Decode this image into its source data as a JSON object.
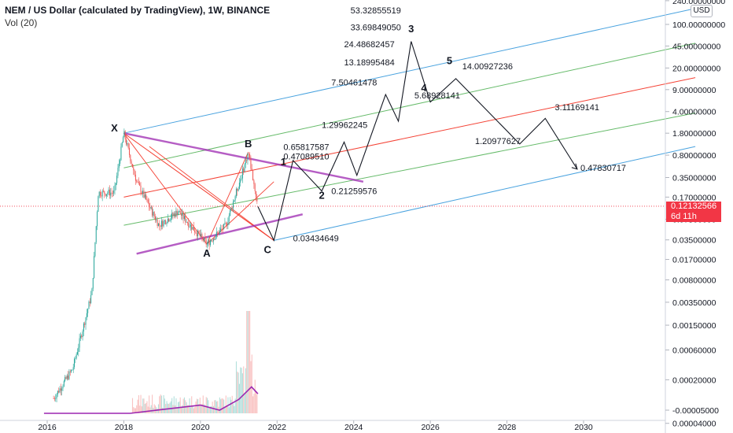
{
  "header": {
    "title": "NEM / US Dollar (calculated by TradingView), 1W, BINANCE",
    "indicator": "Vol (20)",
    "currency": "USD"
  },
  "price_badge": {
    "price": "0.12132566",
    "countdown": "6d 11h"
  },
  "colors": {
    "up": "#26a69a",
    "down": "#ef5350",
    "purple": "#9c27b0",
    "blue": "#4aa3df",
    "green": "#66bb6a",
    "red": "#f44336",
    "price_line": "#f23645"
  },
  "chart_data": {
    "type": "line",
    "title": "NEM / US Dollar (calculated by TradingView), 1W, BINANCE",
    "xlabel": "",
    "ylabel": "",
    "y_scale": "log",
    "x_ticks": [
      "2016",
      "2018",
      "2020",
      "2022",
      "2024",
      "2026",
      "2028",
      "2030"
    ],
    "y_ticks": [
      "240.00000000",
      "100.00000000",
      "45.00000000",
      "20.00000000",
      "9.00000000",
      "4.00000000",
      "1.80000000",
      "0.80000000",
      "0.35000000",
      "0.17000000",
      "0.07500000",
      "0.03500000",
      "0.01700000",
      "0.00800000",
      "0.00350000",
      "0.00150000",
      "0.00060000",
      "0.00020000",
      "0.00004000",
      "-0.00005000"
    ],
    "current_price": 0.12132566,
    "price_path": [
      {
        "date": "2016-03",
        "close": 0.0001
      },
      {
        "date": "2016-09",
        "close": 0.0003
      },
      {
        "date": "2017-03",
        "close": 0.005
      },
      {
        "date": "2017-05",
        "close": 0.2
      },
      {
        "date": "2017-10",
        "close": 0.2
      },
      {
        "date": "2018-01",
        "close": 1.8
      },
      {
        "date": "2018-05",
        "close": 0.3
      },
      {
        "date": "2018-12",
        "close": 0.06
      },
      {
        "date": "2019-06",
        "close": 0.1
      },
      {
        "date": "2020-03",
        "close": 0.03
      },
      {
        "date": "2020-09",
        "close": 0.06
      },
      {
        "date": "2021-02",
        "close": 0.4
      },
      {
        "date": "2021-04",
        "close": 0.9
      },
      {
        "date": "2021-07",
        "close": 0.12
      }
    ],
    "volume_ma": [
      {
        "date": "2015-12",
        "value": 0
      },
      {
        "date": "2018-03",
        "value": 0
      },
      {
        "date": "2019-01",
        "value": 0.6
      },
      {
        "date": "2020-01",
        "value": 1.3
      },
      {
        "date": "2020-07",
        "value": 0.5
      },
      {
        "date": "2021-01",
        "value": 2.2
      },
      {
        "date": "2021-05",
        "value": 4.2
      },
      {
        "date": "2021-07",
        "value": 3.1
      }
    ],
    "harmonic_points": [
      {
        "label": "X",
        "date": "2018-01",
        "price": 1.8
      },
      {
        "label": "A",
        "date": "2020-03",
        "price": 0.03
      },
      {
        "label": "B",
        "date": "2021-04",
        "price": 0.9
      },
      {
        "label": "C",
        "date": "2021-12",
        "price": 0.03434649
      }
    ],
    "wave_labels": [
      "1",
      "2",
      "3",
      "4",
      "5"
    ],
    "projection_path": [
      {
        "date": "2021-07",
        "price": 0.12
      },
      {
        "date": "2021-12",
        "price": 0.03434649
      },
      {
        "date": "2022-06",
        "price": 0.65817587
      },
      {
        "date": "2023-03",
        "price": 0.21259576
      },
      {
        "date": "2023-10",
        "price": 1.29962245
      },
      {
        "date": "2024-02",
        "price": 0.38
      },
      {
        "date": "2024-11",
        "price": 7.50461478
      },
      {
        "date": "2025-03",
        "price": 2.8
      },
      {
        "date": "2025-07",
        "price": 53.32855519
      },
      {
        "date": "2026-01",
        "price": 5.68928141
      },
      {
        "date": "2026-09",
        "price": 13.5
      },
      {
        "date": "2028-05",
        "price": 1.20977627
      },
      {
        "date": "2029-01",
        "price": 3.11169141
      },
      {
        "date": "2029-11",
        "price": 0.47830717
      }
    ],
    "annotations": [
      {
        "text": "0.65817587",
        "date": "2022-03",
        "price": 0.97
      },
      {
        "text": "0.47089510",
        "date": "2022-03",
        "price": 0.68
      },
      {
        "text": "0.21259576",
        "date": "2023-06",
        "price": 0.19
      },
      {
        "text": "1.29962245",
        "date": "2023-03",
        "price": 2.2
      },
      {
        "text": "7.50461478",
        "date": "2023-06",
        "price": 10.5
      },
      {
        "text": "13.18995484",
        "date": "2023-10",
        "price": 22
      },
      {
        "text": "24.48682457",
        "date": "2023-10",
        "price": 43
      },
      {
        "text": "33.69849050",
        "date": "2023-12",
        "price": 80
      },
      {
        "text": "53.32855519",
        "date": "2023-12",
        "price": 150
      },
      {
        "text": "5.68928141",
        "date": "2025-08",
        "price": 6.5
      },
      {
        "text": "14.00927236",
        "date": "2026-11",
        "price": 19
      },
      {
        "text": "3.11169141",
        "date": "2029-04",
        "price": 4.2
      },
      {
        "text": "1.20977627",
        "date": "2027-03",
        "price": 1.2
      },
      {
        "text": "0.47830717",
        "date": "2029-12",
        "price": 0.45
      },
      {
        "text": "0.03434649",
        "date": "2022-06",
        "price": 0.033
      }
    ],
    "channel_lines": [
      {
        "color": "blue",
        "from": {
          "date": "2018-01",
          "price": 1.8
        },
        "to": {
          "date": "2032-12",
          "price": 180
        }
      },
      {
        "color": "green",
        "from": {
          "date": "2018-01",
          "price": 0.5
        },
        "to": {
          "date": "2032-12",
          "price": 50
        }
      },
      {
        "color": "red",
        "from": {
          "date": "2018-01",
          "price": 0.17
        },
        "to": {
          "date": "2032-12",
          "price": 14
        }
      },
      {
        "color": "green",
        "from": {
          "date": "2018-01",
          "price": 0.06
        },
        "to": {
          "date": "2032-12",
          "price": 3.8
        }
      },
      {
        "color": "blue",
        "from": {
          "date": "2021-12",
          "price": 0.03434649
        },
        "to": {
          "date": "2032-12",
          "price": 1.1
        }
      }
    ],
    "trend_lines": [
      {
        "color": "purple",
        "from": {
          "date": "2018-01",
          "price": 1.8
        },
        "to": {
          "date": "2024-04",
          "price": 0.3
        }
      },
      {
        "color": "purple",
        "from": {
          "date": "2018-05",
          "price": 0.021
        },
        "to": {
          "date": "2022-09",
          "price": 0.09
        }
      }
    ]
  }
}
